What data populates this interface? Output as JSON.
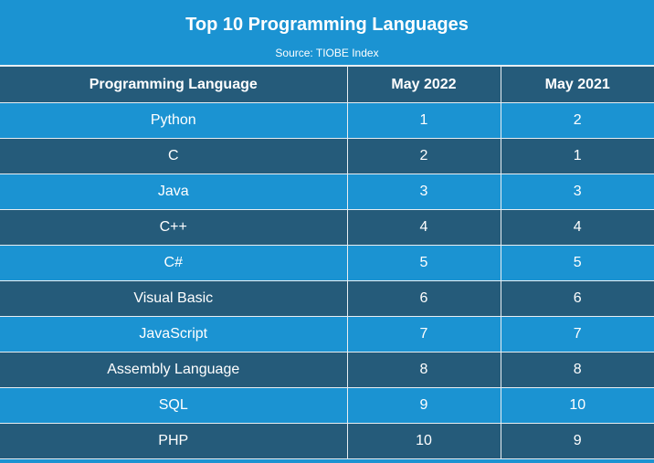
{
  "colors": {
    "header_bg": "#1b93d2",
    "dark_row": "#255b7a",
    "light_row": "#1b93d2",
    "text": "#ffffff"
  },
  "chart_data": {
    "type": "table",
    "title": "Top 10 Programming Languages",
    "subtitle": "Source: TIOBE Index",
    "columns": [
      "Programming Language",
      "May 2022",
      "May 2021"
    ],
    "rows": [
      [
        "Python",
        "1",
        "2"
      ],
      [
        "C",
        "2",
        "1"
      ],
      [
        "Java",
        "3",
        "3"
      ],
      [
        "C++",
        "4",
        "4"
      ],
      [
        "C#",
        "5",
        "5"
      ],
      [
        "Visual Basic",
        "6",
        "6"
      ],
      [
        "JavaScript",
        "7",
        "7"
      ],
      [
        "Assembly Language",
        "8",
        "8"
      ],
      [
        "SQL",
        "9",
        "10"
      ],
      [
        "PHP",
        "10",
        "9"
      ]
    ]
  }
}
